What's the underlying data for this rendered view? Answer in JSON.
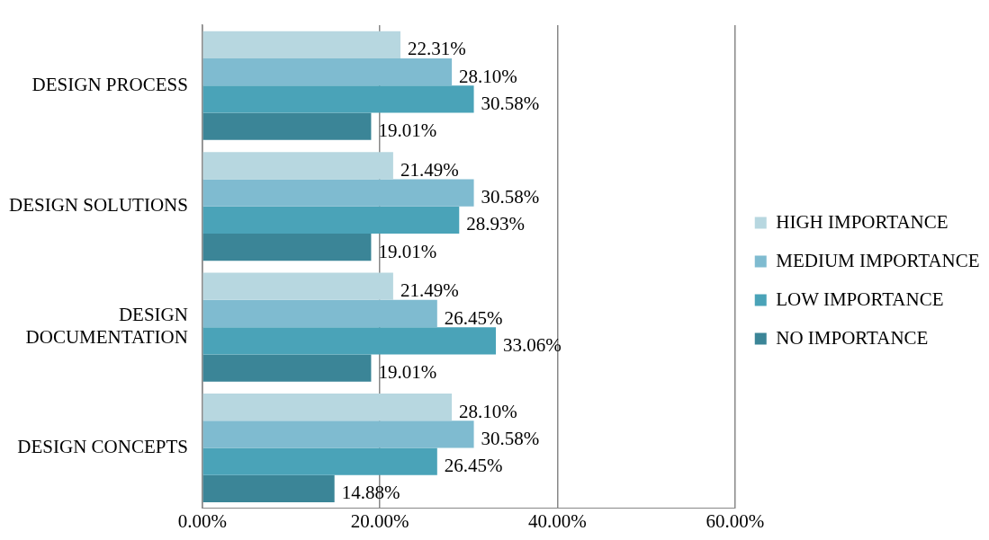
{
  "chart_data": {
    "type": "bar",
    "orientation": "horizontal",
    "categories": [
      "DESIGN PROCESS",
      "DESIGN SOLUTIONS",
      "DESIGN DOCUMENTATION",
      "DESIGN CONCEPTS"
    ],
    "series": [
      {
        "name": "HIGH IMPORTANCE",
        "color": "#b7d7e0",
        "values": [
          22.31,
          21.49,
          21.49,
          28.1
        ],
        "value_labels": [
          "22.31%",
          "21.49%",
          "21.49%",
          "28.10%"
        ]
      },
      {
        "name": "MEDIUM IMPORTANCE",
        "color": "#7fbbd0",
        "values": [
          28.1,
          30.58,
          26.45,
          30.58
        ],
        "value_labels": [
          "28.10%",
          "30.58%",
          "26.45%",
          "30.58%"
        ]
      },
      {
        "name": "LOW IMPORTANCE",
        "color": "#4aa3b8",
        "values": [
          30.58,
          28.93,
          33.06,
          26.45
        ],
        "value_labels": [
          "30.58%",
          "28.93%",
          "33.06%",
          "26.45%"
        ]
      },
      {
        "name": "NO IMPORTANCE",
        "color": "#3b8597",
        "values": [
          19.01,
          19.01,
          19.01,
          14.88
        ],
        "value_labels": [
          "19.01%",
          "19.01%",
          "19.01%",
          "14.88%"
        ]
      }
    ],
    "xlim": [
      0,
      60
    ],
    "xticks": [
      {
        "value": 0,
        "label": "0.00%"
      },
      {
        "value": 20,
        "label": "20.00%"
      },
      {
        "value": 40,
        "label": "40.00%"
      },
      {
        "value": 60,
        "label": "60.00%"
      }
    ],
    "grid": "x",
    "legend": "right"
  }
}
